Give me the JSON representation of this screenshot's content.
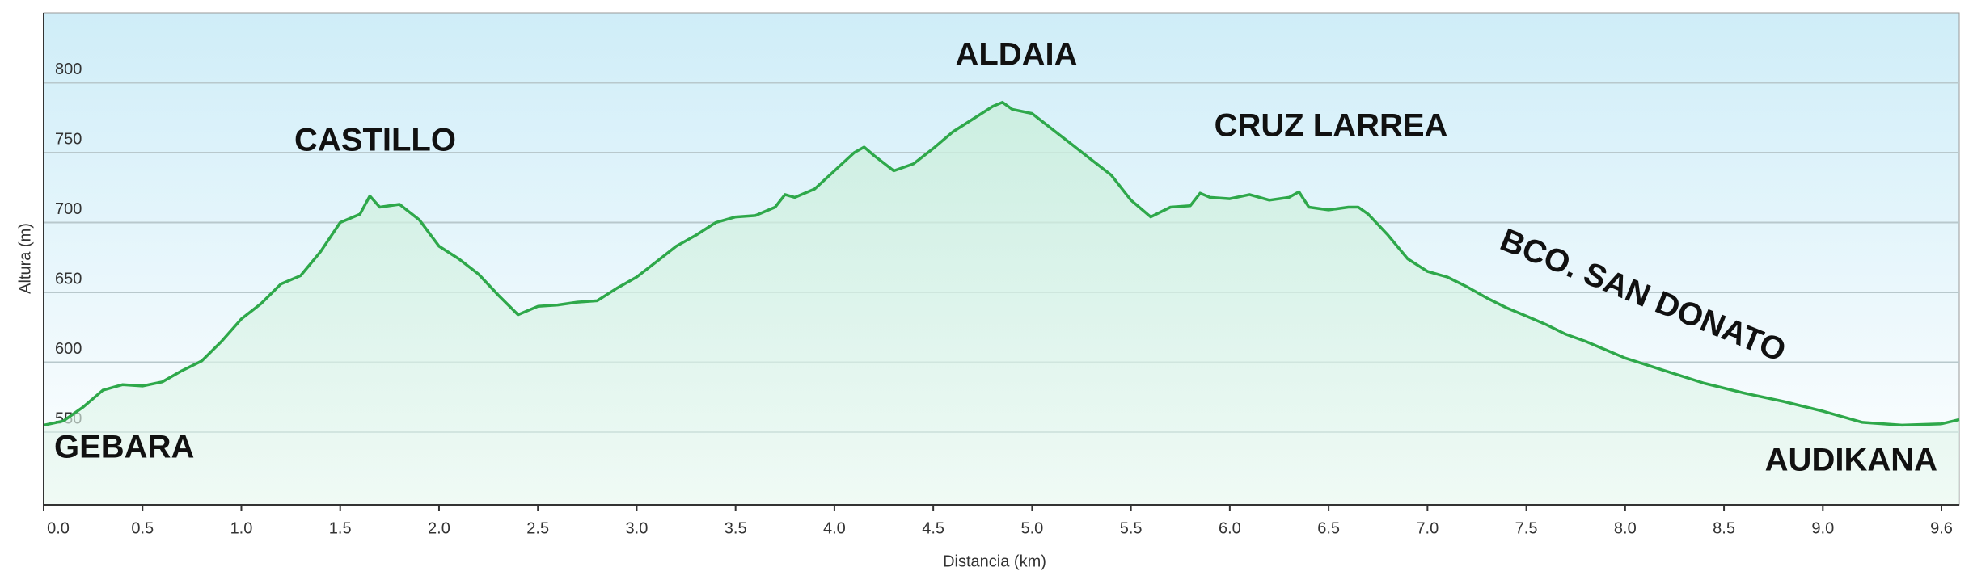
{
  "chart_data": {
    "type": "area",
    "x_label": "Distancia  (km)",
    "y_label": "Altura (m)",
    "annotations": [
      "GEBARA",
      "CASTILLO",
      "ALDAIA",
      "CRUZ LARREA",
      "BCO. SAN DONATO",
      "AUDIKANA"
    ],
    "x": [
      0,
      0.1,
      0.2,
      0.3,
      0.4,
      0.5,
      0.6,
      0.7,
      0.8,
      0.9,
      1.0,
      1.1,
      1.2,
      1.3,
      1.4,
      1.5,
      1.6,
      1.65,
      1.7,
      1.8,
      1.9,
      2.0,
      2.1,
      2.2,
      2.3,
      2.4,
      2.5,
      2.6,
      2.7,
      2.8,
      2.9,
      3.0,
      3.1,
      3.2,
      3.3,
      3.4,
      3.5,
      3.6,
      3.7,
      3.75,
      3.8,
      3.9,
      4.0,
      4.1,
      4.15,
      4.2,
      4.3,
      4.4,
      4.5,
      4.6,
      4.7,
      4.8,
      4.85,
      4.9,
      5.0,
      5.1,
      5.2,
      5.3,
      5.4,
      5.5,
      5.6,
      5.7,
      5.8,
      5.85,
      5.9,
      6.0,
      6.1,
      6.2,
      6.3,
      6.35,
      6.4,
      6.5,
      6.6,
      6.65,
      6.7,
      6.8,
      6.9,
      7.0,
      7.1,
      7.2,
      7.3,
      7.4,
      7.5,
      7.6,
      7.7,
      7.8,
      7.9,
      8.0,
      8.2,
      8.4,
      8.6,
      8.8,
      9.0,
      9.2,
      9.4,
      9.6,
      9.69
    ],
    "series": [
      {
        "name": "Altura",
        "color": "#2ea84a",
        "values": [
          555,
          558,
          568,
          580,
          584,
          583,
          586,
          594,
          601,
          615,
          631,
          642,
          656,
          662,
          679,
          700,
          706,
          719,
          711,
          713,
          702,
          683,
          674,
          663,
          648,
          634,
          640,
          641,
          643,
          644,
          653,
          661,
          672,
          683,
          691,
          700,
          704,
          705,
          711,
          720,
          718,
          724,
          737,
          750,
          754,
          748,
          737,
          742,
          753,
          765,
          774,
          783,
          786,
          781,
          778,
          767,
          756,
          745,
          734,
          716,
          704,
          711,
          712,
          721,
          718,
          717,
          720,
          716,
          718,
          722,
          711,
          709,
          711,
          711,
          706,
          691,
          674,
          665,
          661,
          654,
          646,
          639,
          633,
          627,
          620,
          615,
          609,
          603,
          594,
          585,
          578,
          572,
          565,
          557,
          555,
          556,
          559
        ]
      }
    ],
    "xlim": [
      0,
      9.69
    ],
    "ylim": [
      498,
      850
    ],
    "xticks": [
      {
        "value": 0,
        "label": "0.0"
      },
      0.5,
      {
        "value": 1,
        "label": "1.0"
      },
      1.5,
      {
        "value": 2,
        "label": "2.0"
      },
      2.5,
      {
        "value": 3,
        "label": "3.0"
      },
      3.5,
      {
        "value": 4,
        "label": "4.0"
      },
      4.5,
      {
        "value": 5,
        "label": "5.0"
      },
      5.5,
      {
        "value": 6,
        "label": "6.0"
      },
      6.5,
      {
        "value": 7,
        "label": "7.0"
      },
      7.5,
      {
        "value": 8,
        "label": "8.0"
      },
      8.5,
      {
        "value": 9,
        "label": "9.0"
      },
      9.6
    ],
    "yticks": [
      550,
      600,
      650,
      700,
      750,
      800
    ],
    "grid": true
  }
}
